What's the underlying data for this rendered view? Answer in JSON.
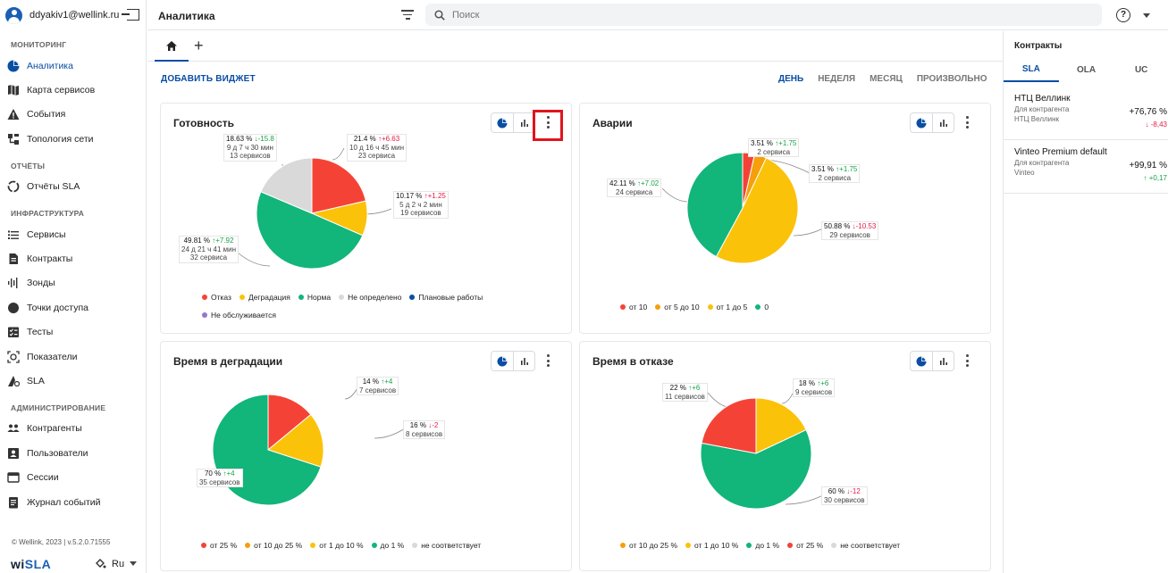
{
  "user": {
    "email": "ddyakiv1@wellink.ru"
  },
  "sidebar": {
    "sections": [
      {
        "title": "МОНИТОРИНГ",
        "items": [
          {
            "label": "Аналитика",
            "icon": "pie-chart-icon",
            "active": true
          },
          {
            "label": "Карта сервисов",
            "icon": "map-icon"
          },
          {
            "label": "События",
            "icon": "warning-icon"
          },
          {
            "label": "Топология сети",
            "icon": "topology-icon"
          }
        ]
      },
      {
        "title": "ОТЧЁТЫ",
        "items": [
          {
            "label": "Отчёты SLA",
            "icon": "report-icon"
          }
        ]
      },
      {
        "title": "ИНФРАСТРУКТУРА",
        "items": [
          {
            "label": "Сервисы",
            "icon": "list-icon"
          },
          {
            "label": "Контракты",
            "icon": "document-icon"
          },
          {
            "label": "Зонды",
            "icon": "probe-icon"
          },
          {
            "label": "Точки доступа",
            "icon": "dot-icon"
          },
          {
            "label": "Тесты",
            "icon": "checklist-icon"
          },
          {
            "label": "Показатели",
            "icon": "metrics-icon"
          },
          {
            "label": "SLA",
            "icon": "sla-icon"
          }
        ]
      },
      {
        "title": "АДМИНИСТРИРОВАНИЕ",
        "items": [
          {
            "label": "Контрагенты",
            "icon": "group-icon"
          },
          {
            "label": "Пользователи",
            "icon": "user-card-icon"
          },
          {
            "label": "Сессии",
            "icon": "window-icon"
          },
          {
            "label": "Журнал событий",
            "icon": "journal-icon"
          }
        ]
      }
    ],
    "footer": "© Wellink, 2023 | v.5.2.0.71555",
    "brand_prefix": "wi",
    "brand_suffix": "SLA",
    "language": "Ru"
  },
  "topbar": {
    "title": "Аналитика",
    "search_placeholder": "Поиск",
    "help": "?"
  },
  "tabs": {
    "add": "+"
  },
  "toolbar": {
    "add_widget": "ДОБАВИТЬ ВИДЖЕТ",
    "periods": [
      "ДЕНЬ",
      "НЕДЕЛЯ",
      "МЕСЯЦ",
      "ПРОИЗВОЛЬНО"
    ],
    "active_period": "ДЕНЬ"
  },
  "colors": {
    "red": "#f44336",
    "orange": "#f59f0b",
    "yellow": "#fbc20a",
    "green": "#12b57a",
    "grey": "#d9d9d9",
    "blue": "#0a4ea3",
    "purple": "#9575cd",
    "accent": "#0a4ea3"
  },
  "widgets": {
    "readiness": {
      "title": "Готовность",
      "labels": [
        {
          "pct": "21.4 %",
          "dir": "↑",
          "delta": "+6.63",
          "dtype": "dn",
          "line2": "10 д 16 ч 45 мин",
          "line3": "23 сервиса"
        },
        {
          "pct": "10.17 %",
          "dir": "↑",
          "delta": "+1.25",
          "dtype": "dn",
          "line2": "5 д 2 ч 2 мин",
          "line3": "19 сервисов"
        },
        {
          "pct": "49.81 %",
          "dir": "↑",
          "delta": "+7.92",
          "dtype": "up",
          "line2": "24 д 21 ч 41 мин",
          "line3": "32 сервиса"
        },
        {
          "pct": "18.63 %",
          "dir": "↓",
          "delta": "-15.8",
          "dtype": "up",
          "line2": "9 д 7 ч 30 мин",
          "line3": "13 сервисов"
        }
      ],
      "legend": [
        {
          "label": "Отказ",
          "color": "#f44336"
        },
        {
          "label": "Деградация",
          "color": "#fbc20a"
        },
        {
          "label": "Норма",
          "color": "#12b57a"
        },
        {
          "label": "Не определено",
          "color": "#d9d9d9"
        },
        {
          "label": "Плановые работы",
          "color": "#0a4ea3"
        },
        {
          "label": "Не обслуживается",
          "color": "#9575cd"
        }
      ],
      "slices": [
        21.4,
        10.17,
        49.81,
        18.63
      ],
      "slice_colors": [
        "#f44336",
        "#fbc20a",
        "#12b57a",
        "#d9d9d9"
      ]
    },
    "incidents": {
      "title": "Аварии",
      "labels": [
        {
          "pct": "3.51 %",
          "dir": "↑",
          "delta": "+1.75",
          "dtype": "up",
          "line2": "2 сервиса"
        },
        {
          "pct": "3.51 %",
          "dir": "↑",
          "delta": "+1.75",
          "dtype": "up",
          "line2": "2 сервиса"
        },
        {
          "pct": "50.88 %",
          "dir": "↓",
          "delta": "-10.53",
          "dtype": "dn",
          "line2": "29 сервисов"
        },
        {
          "pct": "42.11 %",
          "dir": "↑",
          "delta": "+7.02",
          "dtype": "up",
          "line2": "24 сервиса"
        }
      ],
      "legend": [
        {
          "label": "от 10",
          "color": "#f44336"
        },
        {
          "label": "от 5 до 10",
          "color": "#f59f0b"
        },
        {
          "label": "от 1 до 5",
          "color": "#fbc20a"
        },
        {
          "label": "0",
          "color": "#12b57a"
        }
      ],
      "slices": [
        3.51,
        3.51,
        50.88,
        42.11
      ],
      "slice_colors": [
        "#f44336",
        "#f59f0b",
        "#fbc20a",
        "#12b57a"
      ]
    },
    "degradation": {
      "title": "Время в деградации",
      "labels": [
        {
          "pct": "14 %",
          "dir": "↑",
          "delta": "+4",
          "dtype": "up",
          "line2": "7 сервисов"
        },
        {
          "pct": "16 %",
          "dir": "↓",
          "delta": "-2",
          "dtype": "dn",
          "line2": "8 сервисов"
        },
        {
          "pct": "70 %",
          "dir": "↑",
          "delta": "+4",
          "dtype": "up",
          "line2": "35 сервисов"
        }
      ],
      "legend": [
        {
          "label": "от 25 %",
          "color": "#f44336"
        },
        {
          "label": "от 10 до 25 %",
          "color": "#f59f0b"
        },
        {
          "label": "от 1 до 10 %",
          "color": "#fbc20a"
        },
        {
          "label": "до 1 %",
          "color": "#12b57a"
        },
        {
          "label": "не соответствует",
          "color": "#d9d9d9"
        }
      ],
      "slices": [
        14,
        16,
        70
      ],
      "slice_colors": [
        "#f44336",
        "#fbc20a",
        "#12b57a"
      ]
    },
    "failure": {
      "title": "Время в отказе",
      "labels": [
        {
          "pct": "18 %",
          "dir": "↑",
          "delta": "+6",
          "dtype": "up",
          "line2": "9 сервисов"
        },
        {
          "pct": "60 %",
          "dir": "↓",
          "delta": "-12",
          "dtype": "dn",
          "line2": "30 сервисов"
        },
        {
          "pct": "22 %",
          "dir": "↑",
          "delta": "+6",
          "dtype": "up",
          "line2": "11 сервисов"
        }
      ],
      "legend": [
        {
          "label": "от 10 до 25 %",
          "color": "#f59f0b"
        },
        {
          "label": "от 1 до 10 %",
          "color": "#fbc20a"
        },
        {
          "label": "до 1 %",
          "color": "#12b57a"
        },
        {
          "label": "от 25 %",
          "color": "#f44336"
        },
        {
          "label": "не соответствует",
          "color": "#d9d9d9"
        }
      ],
      "slices": [
        18,
        60,
        22
      ],
      "slice_colors": [
        "#fbc20a",
        "#12b57a",
        "#f44336"
      ]
    }
  },
  "right_panel": {
    "title": "Контракты",
    "tabs": [
      "SLA",
      "OLA",
      "UC"
    ],
    "active_tab": "SLA",
    "items": [
      {
        "name": "НТЦ Веллинк",
        "sub1": "Для контрагента",
        "sub2": "НТЦ Веллинк",
        "value": "+76,76 %",
        "delta": "↓ -8,43",
        "dtype": "dn"
      },
      {
        "name": "Vinteo Premium default",
        "sub1": "Для контрагента",
        "sub2": "Vinteo",
        "value": "+99,91 %",
        "delta": "↑ +0,17",
        "dtype": "up"
      }
    ]
  }
}
